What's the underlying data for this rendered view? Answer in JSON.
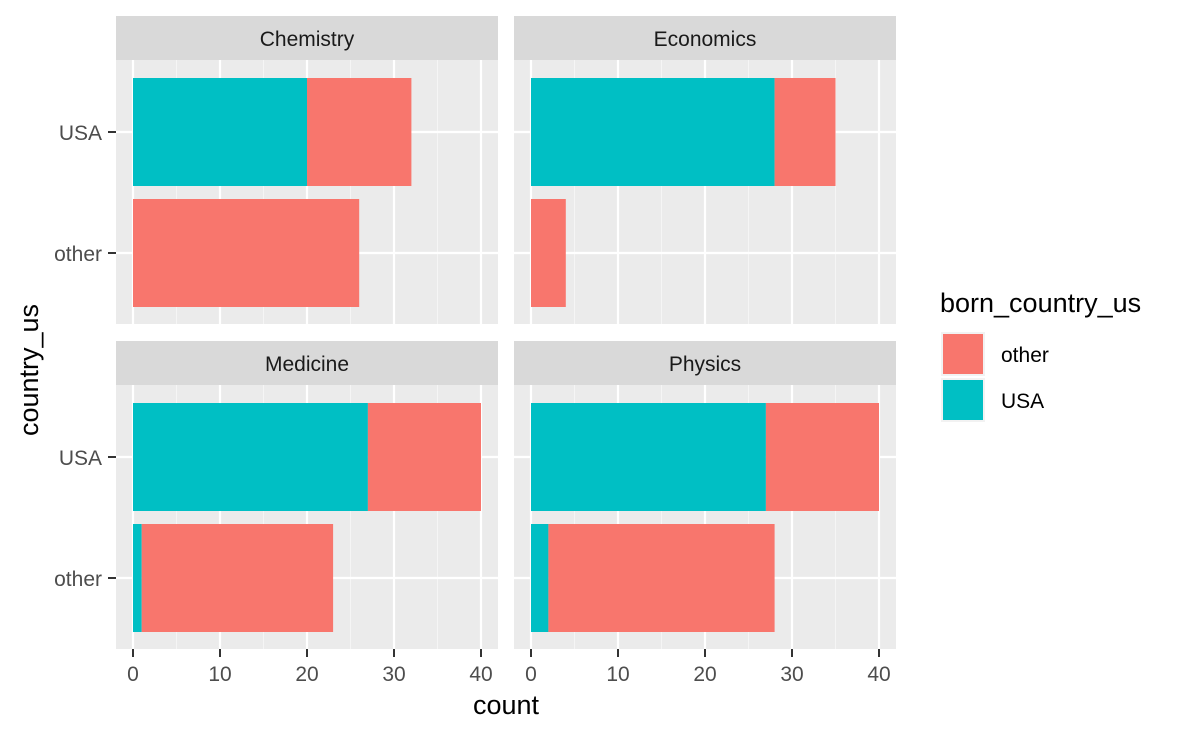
{
  "chart_data": {
    "type": "bar",
    "orientation": "horizontal",
    "stacked": true,
    "xlabel": "count",
    "ylabel": "country_us",
    "xlim": [
      0,
      42
    ],
    "x_ticks": [
      0,
      10,
      20,
      30,
      40
    ],
    "categories": [
      "USA",
      "other"
    ],
    "legend": {
      "title": "born_country_us",
      "position": "right",
      "items": [
        {
          "label": "other",
          "color": "#F8766D"
        },
        {
          "label": "USA",
          "color": "#00BFC4"
        }
      ]
    },
    "grid": true,
    "panels": [
      {
        "title": "Chemistry",
        "bars": [
          {
            "category": "USA",
            "USA": 20,
            "other": 12
          },
          {
            "category": "other",
            "USA": 0,
            "other": 26
          }
        ]
      },
      {
        "title": "Economics",
        "bars": [
          {
            "category": "USA",
            "USA": 28,
            "other": 7
          },
          {
            "category": "other",
            "USA": 0,
            "other": 4
          }
        ]
      },
      {
        "title": "Medicine",
        "bars": [
          {
            "category": "USA",
            "USA": 27,
            "other": 13
          },
          {
            "category": "other",
            "USA": 1,
            "other": 22
          }
        ]
      },
      {
        "title": "Physics",
        "bars": [
          {
            "category": "USA",
            "USA": 27,
            "other": 13
          },
          {
            "category": "other",
            "USA": 2,
            "other": 26
          }
        ]
      }
    ]
  }
}
